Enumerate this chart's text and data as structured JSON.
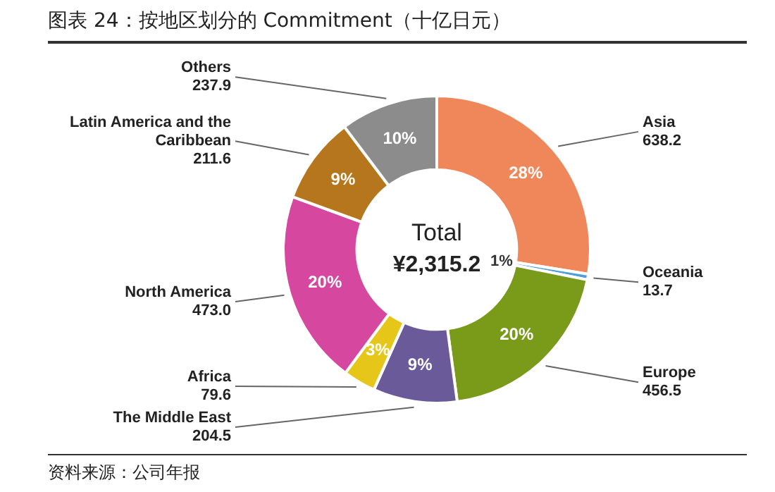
{
  "chart_data": {
    "type": "donut",
    "title": "图表 24：按地区划分的 Commitment（十亿日元）",
    "categories": [
      "Asia",
      "Oceania",
      "Europe",
      "The Middle East",
      "Africa",
      "North America",
      "Latin America and the Caribbean",
      "Others"
    ],
    "values": [
      638.2,
      13.7,
      456.5,
      204.5,
      79.6,
      473.0,
      211.6,
      237.9
    ],
    "value_labels": [
      "638.2",
      "13.7",
      "456.5",
      "204.5",
      "79.6",
      "473.0",
      "211.6",
      "237.9"
    ],
    "colors": [
      "#f0875a",
      "#4a9fd6",
      "#7a9a1a",
      "#6a5a9a",
      "#e6c619",
      "#d6479f",
      "#b5761e",
      "#8c8c8c"
    ],
    "annotations": [
      "Total\n¥2,315.2",
      "资料来源：公司年报",
      {
        "text": "28%",
        "x": "Asia"
      },
      {
        "text": "1%",
        "x": "Oceania"
      },
      {
        "text": "20%",
        "x": "Europe"
      },
      {
        "text": "9%",
        "x": "The Middle East"
      },
      {
        "text": "3%",
        "x": "Africa"
      },
      {
        "text": "20%",
        "x": "North America"
      },
      {
        "text": "9%",
        "x": "Latin America and the Caribbean"
      },
      {
        "text": "10%",
        "x": "Others"
      }
    ],
    "legend": false
  }
}
